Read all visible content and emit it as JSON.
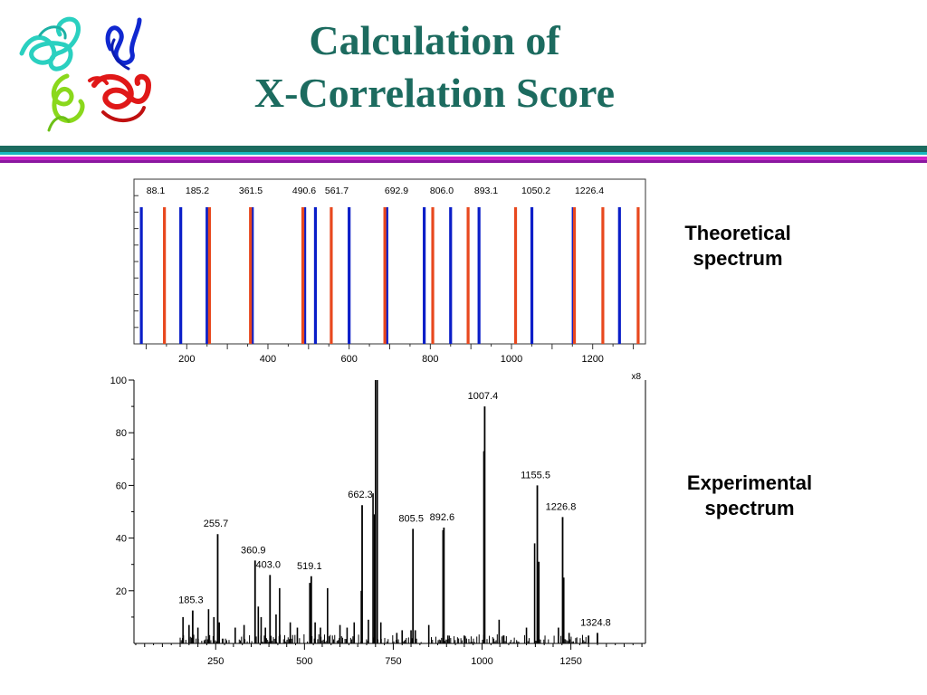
{
  "slide": {
    "title_line1": "Calculation of",
    "title_line2": "X-Correlation Score",
    "theoretical_label_line1": "Theoretical",
    "theoretical_label_line2": "spectrum",
    "experimental_label_line1": "Experimental",
    "experimental_label_line2": "spectrum",
    "colors": {
      "title": "#1c6b5f",
      "rule_teal": "#1c6b5f",
      "rule_cyan": "#18b8c0",
      "rule_magenta": "#d020c8",
      "rule_purple": "#8a18a0",
      "b_ion": "#0a1ec8",
      "y_ion": "#e8481e"
    }
  },
  "chart_data": [
    {
      "type": "bar",
      "name": "theoretical",
      "xlim": [
        70,
        1330
      ],
      "xticks": [
        200,
        400,
        600,
        800,
        1000,
        1200
      ],
      "annotations": [
        88.1,
        185.2,
        361.5,
        490.6,
        561.7,
        692.9,
        806.0,
        893.1,
        1050.2,
        1226.4
      ],
      "series": [
        {
          "color": "#0a1ec8",
          "x": [
            88.1,
            185.2,
            250,
            361.5,
            490.6,
            517,
            600,
            692.9,
            785,
            850,
            920,
            1050.2,
            1152,
            1266
          ]
        },
        {
          "color": "#e8481e",
          "x": [
            145,
            256,
            357,
            486,
            556,
            688,
            806.0,
            893.1,
            1010,
            1155,
            1225,
            1312
          ]
        }
      ]
    },
    {
      "type": "bar",
      "name": "experimental",
      "xlim": [
        20,
        1460
      ],
      "ylim": [
        0,
        100
      ],
      "xticks": [
        250,
        500,
        750,
        1000,
        1250
      ],
      "yticks": [
        20,
        40,
        60,
        80,
        100
      ],
      "scale_note": "x8",
      "labeled_peaks": [
        {
          "x": 185.3,
          "y": 12.5,
          "label": "185.3"
        },
        {
          "x": 255.7,
          "y": 41.5,
          "label": "255.7"
        },
        {
          "x": 360.9,
          "y": 31.5,
          "label": "360.9"
        },
        {
          "x": 403.0,
          "y": 26.0,
          "label": "403.0"
        },
        {
          "x": 519.1,
          "y": 25.5,
          "label": "519.1"
        },
        {
          "x": 662.3,
          "y": 52.5,
          "label": "662.3"
        },
        {
          "x": 805.5,
          "y": 43.5,
          "label": "805.5"
        },
        {
          "x": 892.6,
          "y": 44.0,
          "label": "892.6"
        },
        {
          "x": 1007.4,
          "y": 90.0,
          "label": "1007.4"
        },
        {
          "x": 1155.5,
          "y": 60.0,
          "label": "1155.5"
        },
        {
          "x": 1226.8,
          "y": 48.0,
          "label": "1226.8"
        },
        {
          "x": 1324.8,
          "y": 4.0,
          "label": "1324.8"
        }
      ],
      "unlabeled_peaks": [
        {
          "x": 700,
          "y": 100
        },
        {
          "x": 705,
          "y": 100
        },
        {
          "x": 693,
          "y": 57
        },
        {
          "x": 697,
          "y": 49
        },
        {
          "x": 158,
          "y": 10
        },
        {
          "x": 175,
          "y": 7
        },
        {
          "x": 200,
          "y": 6
        },
        {
          "x": 230,
          "y": 13
        },
        {
          "x": 245,
          "y": 10
        },
        {
          "x": 260,
          "y": 8
        },
        {
          "x": 305,
          "y": 6
        },
        {
          "x": 330,
          "y": 7
        },
        {
          "x": 370,
          "y": 14
        },
        {
          "x": 378,
          "y": 10
        },
        {
          "x": 390,
          "y": 6
        },
        {
          "x": 420,
          "y": 11
        },
        {
          "x": 430,
          "y": 21
        },
        {
          "x": 460,
          "y": 8
        },
        {
          "x": 480,
          "y": 6
        },
        {
          "x": 515,
          "y": 23
        },
        {
          "x": 530,
          "y": 8
        },
        {
          "x": 545,
          "y": 6
        },
        {
          "x": 565,
          "y": 21
        },
        {
          "x": 600,
          "y": 7
        },
        {
          "x": 620,
          "y": 6
        },
        {
          "x": 640,
          "y": 8
        },
        {
          "x": 660,
          "y": 20
        },
        {
          "x": 680,
          "y": 9
        },
        {
          "x": 715,
          "y": 8
        },
        {
          "x": 760,
          "y": 4
        },
        {
          "x": 775,
          "y": 5
        },
        {
          "x": 800,
          "y": 5
        },
        {
          "x": 812,
          "y": 5
        },
        {
          "x": 850,
          "y": 7
        },
        {
          "x": 890,
          "y": 43
        },
        {
          "x": 904,
          "y": 3
        },
        {
          "x": 950,
          "y": 3
        },
        {
          "x": 1005,
          "y": 73
        },
        {
          "x": 1048,
          "y": 9
        },
        {
          "x": 1060,
          "y": 3
        },
        {
          "x": 1125,
          "y": 6
        },
        {
          "x": 1148,
          "y": 38
        },
        {
          "x": 1160,
          "y": 31
        },
        {
          "x": 1215,
          "y": 6
        },
        {
          "x": 1230,
          "y": 25
        },
        {
          "x": 1245,
          "y": 4
        },
        {
          "x": 1300,
          "y": 3
        }
      ]
    }
  ]
}
